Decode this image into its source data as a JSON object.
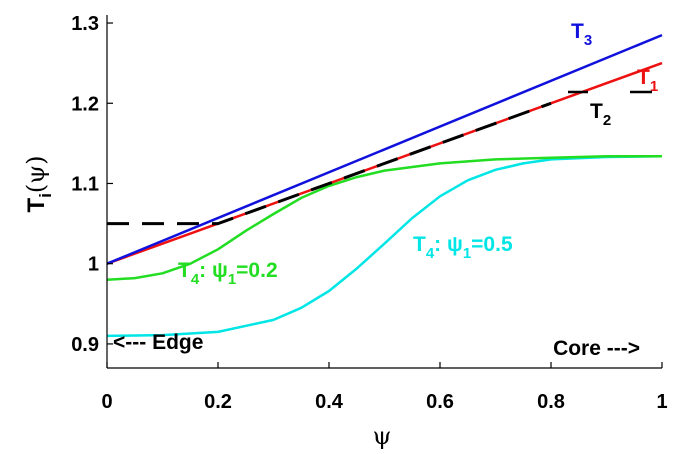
{
  "chart_data": {
    "type": "line",
    "xlabel": "ψ",
    "ylabel_main": "T",
    "ylabel_sub": "i",
    "ylabel_paren": "(ψ)",
    "xlim": [
      0,
      1
    ],
    "ylim": [
      0.87,
      1.31
    ],
    "x_ticks": [
      0,
      0.2,
      0.4,
      0.6,
      0.8,
      1
    ],
    "x_tick_labels": [
      "0",
      "0.2",
      "0.4",
      "0.6",
      "0.8",
      "1"
    ],
    "y_ticks": [
      0.9,
      1.0,
      1.1,
      1.2,
      1.3
    ],
    "y_tick_labels": [
      "0.9",
      "1",
      "1.1",
      "1.2",
      "1.3"
    ],
    "grid": false,
    "series": [
      {
        "name": "T4: ψ1=0.5",
        "color": "#00e5e5",
        "style": "solid",
        "x": [
          0,
          0.1,
          0.2,
          0.3,
          0.35,
          0.4,
          0.45,
          0.5,
          0.55,
          0.6,
          0.65,
          0.7,
          0.75,
          0.8,
          0.9,
          1.0
        ],
        "y": [
          0.91,
          0.911,
          0.915,
          0.93,
          0.945,
          0.966,
          0.994,
          1.025,
          1.057,
          1.084,
          1.104,
          1.117,
          1.125,
          1.13,
          1.133,
          1.134
        ]
      },
      {
        "name": "T4: ψ1=0.2",
        "color": "#22dd22",
        "style": "solid",
        "x": [
          0,
          0.05,
          0.1,
          0.15,
          0.2,
          0.25,
          0.3,
          0.35,
          0.4,
          0.45,
          0.5,
          0.6,
          0.7,
          0.8,
          0.9,
          1.0
        ],
        "y": [
          0.98,
          0.982,
          0.988,
          1.0,
          1.018,
          1.041,
          1.062,
          1.082,
          1.097,
          1.108,
          1.116,
          1.125,
          1.13,
          1.132,
          1.134,
          1.134
        ]
      },
      {
        "name": "T1",
        "color": "#ee1111",
        "style": "solid",
        "x": [
          0,
          0.2,
          1.0
        ],
        "y": [
          1.0,
          1.05,
          1.25
        ]
      },
      {
        "name": "T2",
        "color": "#000000",
        "style": "dashed",
        "x": [
          0,
          0.2,
          0.8
        ],
        "y": [
          1.05,
          1.05,
          1.2
        ]
      },
      {
        "name": "T3",
        "color": "#1111dd",
        "style": "solid",
        "x": [
          0,
          1.0
        ],
        "y": [
          1.0,
          1.285
        ]
      }
    ],
    "annotations": {
      "T3": {
        "main": "T",
        "sub": "3",
        "color": "#1111dd"
      },
      "T1": {
        "main": "T",
        "sub": "1",
        "color": "#ee1111"
      },
      "T2": {
        "main": "T",
        "sub": "2",
        "color": "#000000"
      },
      "T4_02": {
        "main": "T",
        "sub": "4",
        "rest": ": ψ",
        "sub2": "1",
        "tail": "=0.2",
        "color": "#22dd22"
      },
      "T4_05": {
        "main": "T",
        "sub": "4",
        "rest": ": ψ",
        "sub2": "1",
        "tail": "=0.5",
        "color": "#00e5e5"
      },
      "edge": {
        "text": "<--- Edge",
        "color": "#000000"
      },
      "core": {
        "text": "Core --->",
        "color": "#000000"
      }
    }
  }
}
